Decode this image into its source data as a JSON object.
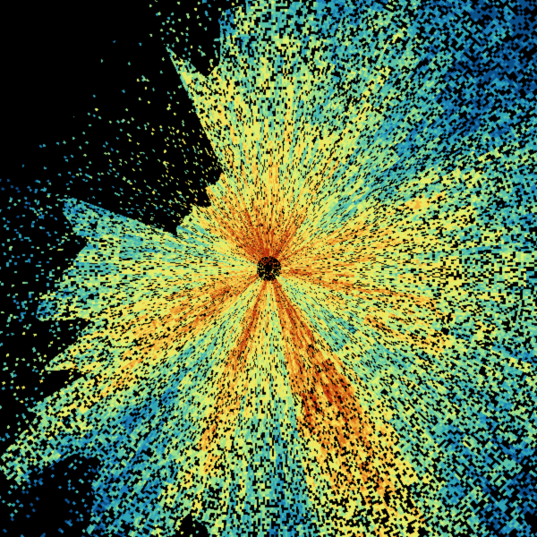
{
  "radar": {
    "background": "#000000",
    "colormap": [
      "#0b4f8a",
      "#1d7fb5",
      "#2fa6b8",
      "#5cc4a6",
      "#9ee08a",
      "#dff06e",
      "#f5e35a",
      "#f0b43c",
      "#d9741e",
      "#b8300f"
    ]
  }
}
